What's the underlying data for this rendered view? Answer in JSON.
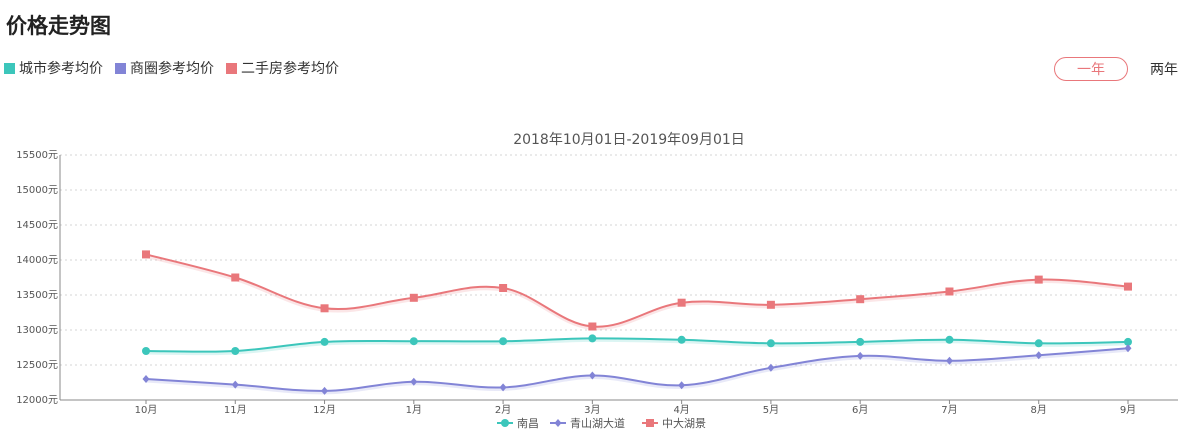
{
  "page": {
    "title": "价格走势图",
    "top_legend": [
      {
        "label": "城市参考均价",
        "color": "#3cc6bb"
      },
      {
        "label": "商圈参考均价",
        "color": "#8284d6"
      },
      {
        "label": "二手房参考均价",
        "color": "#e9777b"
      }
    ],
    "range_buttons": {
      "one_year": "一年",
      "two_year": "两年"
    }
  },
  "chart_data": {
    "type": "line",
    "title": "2018年10月01日-2019年09月01日",
    "categories": [
      "10月",
      "11月",
      "12月",
      "1月",
      "2月",
      "3月",
      "4月",
      "5月",
      "6月",
      "7月",
      "8月",
      "9月"
    ],
    "y_ticks": [
      "12000元",
      "12500元",
      "13000元",
      "13500元",
      "14000元",
      "14500元",
      "15000元",
      "15500元"
    ],
    "ylim": [
      12000,
      15500
    ],
    "grid": true,
    "legend_position": "bottom-center",
    "series": [
      {
        "name": "南昌",
        "color": "#3cc6bb",
        "marker": "circle",
        "values": [
          12700,
          12700,
          12830,
          12840,
          12840,
          12880,
          12860,
          12810,
          12830,
          12860,
          12810,
          12830
        ]
      },
      {
        "name": "青山湖大道",
        "color": "#8284d6",
        "marker": "diamond",
        "values": [
          12300,
          12220,
          12130,
          12260,
          12180,
          12350,
          12210,
          12460,
          12630,
          12560,
          12640,
          12740
        ]
      },
      {
        "name": "中大湖景",
        "color": "#e9777b",
        "marker": "square",
        "values": [
          14080,
          13750,
          13310,
          13460,
          13600,
          13050,
          13390,
          13360,
          13440,
          13550,
          13720,
          13620
        ]
      }
    ]
  }
}
